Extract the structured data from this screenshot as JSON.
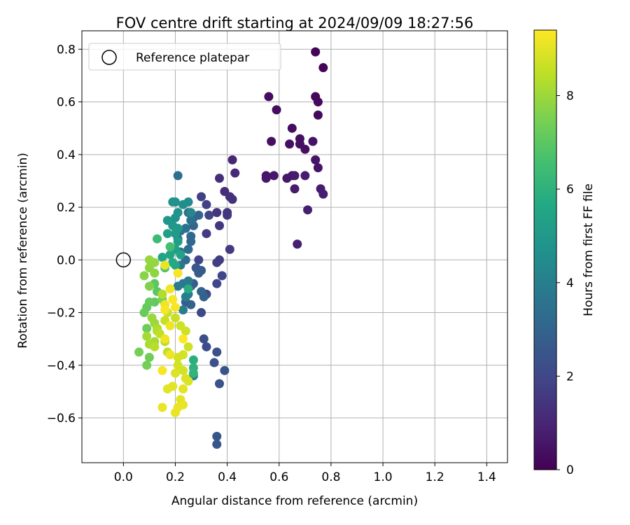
{
  "chart_data": {
    "type": "scatter",
    "title": "FOV centre drift starting at 2024/09/09 18:27:56",
    "xlabel": "Angular distance from reference (arcmin)",
    "ylabel": "Rotation from reference (arcmin)",
    "xlim": [
      -0.16,
      1.48
    ],
    "ylim": [
      -0.77,
      0.87
    ],
    "xticks": [
      0.0,
      0.2,
      0.4,
      0.6,
      0.8,
      1.0,
      1.2,
      1.4
    ],
    "xtick_labels": [
      "0.0",
      "0.2",
      "0.4",
      "0.6",
      "0.8",
      "1.0",
      "1.2",
      "1.4"
    ],
    "yticks": [
      -0.6,
      -0.4,
      -0.2,
      0.0,
      0.2,
      0.4,
      0.6,
      0.8
    ],
    "ytick_labels": [
      "−0.6",
      "−0.4",
      "−0.2",
      "0.0",
      "0.2",
      "0.4",
      "0.6",
      "0.8"
    ],
    "grid": true,
    "legend": {
      "position": "top-left",
      "entries": [
        "Reference platepar"
      ]
    },
    "reference_point": {
      "x": 0.0,
      "y": 0.0,
      "label": "Reference platepar"
    },
    "colorbar": {
      "label": "Hours from first FF file",
      "colormap": "viridis",
      "range": [
        0,
        9.4
      ],
      "ticks": [
        0,
        2,
        4,
        6,
        8
      ],
      "tick_labels": [
        "0",
        "2",
        "4",
        "6",
        "8"
      ]
    },
    "points": [
      [
        0.74,
        0.79,
        0.1
      ],
      [
        0.77,
        0.73,
        0.1
      ],
      [
        0.74,
        0.62,
        0.2
      ],
      [
        0.75,
        0.6,
        0.2
      ],
      [
        0.75,
        0.55,
        0.2
      ],
      [
        0.56,
        0.62,
        0.3
      ],
      [
        0.59,
        0.57,
        0.3
      ],
      [
        0.65,
        0.5,
        0.3
      ],
      [
        0.57,
        0.45,
        0.4
      ],
      [
        0.68,
        0.46,
        0.4
      ],
      [
        0.68,
        0.44,
        0.4
      ],
      [
        0.64,
        0.44,
        0.4
      ],
      [
        0.7,
        0.42,
        0.4
      ],
      [
        0.73,
        0.45,
        0.5
      ],
      [
        0.74,
        0.38,
        0.5
      ],
      [
        0.75,
        0.35,
        0.5
      ],
      [
        0.55,
        0.32,
        0.5
      ],
      [
        0.55,
        0.31,
        0.6
      ],
      [
        0.58,
        0.32,
        0.6
      ],
      [
        0.63,
        0.31,
        0.6
      ],
      [
        0.65,
        0.32,
        0.6
      ],
      [
        0.66,
        0.32,
        0.7
      ],
      [
        0.7,
        0.32,
        0.7
      ],
      [
        0.66,
        0.27,
        0.7
      ],
      [
        0.76,
        0.27,
        0.7
      ],
      [
        0.77,
        0.25,
        0.8
      ],
      [
        0.71,
        0.19,
        0.8
      ],
      [
        0.67,
        0.06,
        0.8
      ],
      [
        0.42,
        0.38,
        1.0
      ],
      [
        0.43,
        0.33,
        1.1
      ],
      [
        0.37,
        0.31,
        1.2
      ],
      [
        0.39,
        0.26,
        1.2
      ],
      [
        0.41,
        0.24,
        1.3
      ],
      [
        0.42,
        0.23,
        1.3
      ],
      [
        0.36,
        0.18,
        1.4
      ],
      [
        0.4,
        0.18,
        1.4
      ],
      [
        0.4,
        0.17,
        1.5
      ],
      [
        0.37,
        0.13,
        1.5
      ],
      [
        0.32,
        0.1,
        1.6
      ],
      [
        0.41,
        0.04,
        1.6
      ],
      [
        0.37,
        0.0,
        1.7
      ],
      [
        0.36,
        -0.01,
        1.7
      ],
      [
        0.32,
        0.21,
        1.8
      ],
      [
        0.3,
        0.24,
        1.8
      ],
      [
        0.33,
        0.17,
        1.9
      ],
      [
        0.29,
        0.0,
        1.9
      ],
      [
        0.38,
        -0.06,
        2.0
      ],
      [
        0.36,
        -0.09,
        2.0
      ],
      [
        0.32,
        -0.13,
        2.1
      ],
      [
        0.3,
        -0.2,
        2.1
      ],
      [
        0.31,
        -0.3,
        2.2
      ],
      [
        0.32,
        -0.33,
        2.2
      ],
      [
        0.36,
        -0.35,
        2.3
      ],
      [
        0.35,
        -0.39,
        2.3
      ],
      [
        0.39,
        -0.42,
        2.4
      ],
      [
        0.37,
        -0.47,
        2.4
      ],
      [
        0.36,
        -0.67,
        2.5
      ],
      [
        0.36,
        -0.7,
        2.5
      ],
      [
        0.28,
        -0.03,
        2.6
      ],
      [
        0.3,
        -0.04,
        2.6
      ],
      [
        0.29,
        -0.05,
        2.7
      ],
      [
        0.27,
        -0.09,
        2.7
      ],
      [
        0.26,
        -0.1,
        2.8
      ],
      [
        0.24,
        -0.16,
        2.8
      ],
      [
        0.26,
        -0.17,
        2.9
      ],
      [
        0.31,
        -0.14,
        2.9
      ],
      [
        0.3,
        -0.12,
        3.0
      ],
      [
        0.29,
        0.17,
        3.0
      ],
      [
        0.27,
        0.16,
        3.1
      ],
      [
        0.27,
        0.13,
        3.1
      ],
      [
        0.26,
        0.09,
        3.2
      ],
      [
        0.26,
        0.07,
        3.2
      ],
      [
        0.25,
        0.04,
        3.3
      ],
      [
        0.24,
        0.0,
        3.3
      ],
      [
        0.21,
        0.32,
        3.4
      ],
      [
        0.25,
        0.18,
        3.4
      ],
      [
        0.26,
        0.15,
        3.5
      ],
      [
        0.24,
        0.12,
        3.5
      ],
      [
        0.22,
        0.11,
        3.6
      ],
      [
        0.21,
        0.08,
        3.6
      ],
      [
        0.22,
        0.03,
        3.7
      ],
      [
        0.22,
        -0.02,
        3.7
      ],
      [
        0.25,
        -0.08,
        3.8
      ],
      [
        0.23,
        -0.09,
        3.8
      ],
      [
        0.21,
        -0.1,
        3.9
      ],
      [
        0.25,
        -0.13,
        3.9
      ],
      [
        0.24,
        -0.14,
        4.0
      ],
      [
        0.23,
        -0.19,
        4.0
      ],
      [
        0.27,
        -0.44,
        4.1
      ],
      [
        0.26,
        0.18,
        4.3
      ],
      [
        0.25,
        0.22,
        4.5
      ],
      [
        0.23,
        0.21,
        4.6
      ],
      [
        0.2,
        0.22,
        4.7
      ],
      [
        0.19,
        0.22,
        4.7
      ],
      [
        0.21,
        0.18,
        4.8
      ],
      [
        0.2,
        0.16,
        4.8
      ],
      [
        0.17,
        0.15,
        4.9
      ],
      [
        0.19,
        0.13,
        5.0
      ],
      [
        0.21,
        0.12,
        5.0
      ],
      [
        0.2,
        0.1,
        5.1
      ],
      [
        0.17,
        0.1,
        5.2
      ],
      [
        0.21,
        0.07,
        5.2
      ],
      [
        0.2,
        0.04,
        5.3
      ],
      [
        0.22,
        0.02,
        5.4
      ],
      [
        0.18,
        0.02,
        5.5
      ],
      [
        0.15,
        0.01,
        5.5
      ],
      [
        0.2,
        -0.02,
        5.6
      ],
      [
        0.19,
        -0.01,
        5.7
      ],
      [
        0.25,
        -0.11,
        5.8
      ],
      [
        0.27,
        -0.38,
        5.9
      ],
      [
        0.27,
        -0.41,
        6.0
      ],
      [
        0.27,
        -0.43,
        6.1
      ],
      [
        0.13,
        0.08,
        6.4
      ],
      [
        0.18,
        0.05,
        6.6
      ],
      [
        0.16,
        -0.03,
        6.8
      ],
      [
        0.12,
        -0.09,
        7.0
      ],
      [
        0.13,
        -0.12,
        7.0
      ],
      [
        0.09,
        -0.18,
        7.1
      ],
      [
        0.12,
        -0.16,
        7.1
      ],
      [
        0.08,
        -0.2,
        7.2
      ],
      [
        0.1,
        -0.16,
        7.2
      ],
      [
        0.09,
        -0.26,
        7.3
      ],
      [
        0.1,
        -0.37,
        7.3
      ],
      [
        0.09,
        -0.4,
        7.4
      ],
      [
        0.06,
        -0.35,
        7.4
      ],
      [
        0.15,
        -0.15,
        7.5
      ],
      [
        0.1,
        -0.1,
        7.6
      ],
      [
        0.08,
        -0.06,
        7.7
      ],
      [
        0.12,
        -0.05,
        7.8
      ],
      [
        0.1,
        -0.03,
        7.8
      ],
      [
        0.1,
        0.0,
        7.9
      ],
      [
        0.12,
        -0.01,
        7.9
      ],
      [
        0.11,
        -0.22,
        8.0
      ],
      [
        0.12,
        -0.24,
        8.0
      ],
      [
        0.09,
        -0.29,
        8.1
      ],
      [
        0.12,
        -0.31,
        8.1
      ],
      [
        0.1,
        -0.32,
        8.2
      ],
      [
        0.13,
        -0.26,
        8.2
      ],
      [
        0.15,
        -0.13,
        8.3
      ],
      [
        0.13,
        -0.27,
        8.3
      ],
      [
        0.12,
        -0.33,
        8.4
      ],
      [
        0.16,
        -0.31,
        8.4
      ],
      [
        0.17,
        -0.35,
        8.5
      ],
      [
        0.14,
        -0.28,
        8.5
      ],
      [
        0.17,
        -0.2,
        8.6
      ],
      [
        0.16,
        -0.23,
        8.6
      ],
      [
        0.2,
        -0.22,
        8.6
      ],
      [
        0.22,
        -0.25,
        8.7
      ],
      [
        0.24,
        -0.27,
        8.7
      ],
      [
        0.25,
        -0.33,
        8.7
      ],
      [
        0.23,
        -0.36,
        8.8
      ],
      [
        0.21,
        -0.37,
        8.8
      ],
      [
        0.21,
        -0.4,
        8.8
      ],
      [
        0.23,
        -0.42,
        8.8
      ],
      [
        0.24,
        -0.45,
        8.9
      ],
      [
        0.25,
        -0.46,
        8.9
      ],
      [
        0.2,
        -0.43,
        8.9
      ],
      [
        0.19,
        -0.48,
        9.0
      ],
      [
        0.17,
        -0.49,
        9.0
      ],
      [
        0.23,
        -0.49,
        9.0
      ],
      [
        0.22,
        -0.53,
        9.0
      ],
      [
        0.23,
        -0.55,
        9.1
      ],
      [
        0.15,
        -0.56,
        9.1
      ],
      [
        0.21,
        -0.56,
        9.1
      ],
      [
        0.2,
        -0.58,
        9.1
      ],
      [
        0.16,
        -0.02,
        9.1
      ],
      [
        0.18,
        -0.11,
        9.2
      ],
      [
        0.16,
        -0.17,
        9.2
      ],
      [
        0.18,
        -0.25,
        9.2
      ],
      [
        0.16,
        -0.3,
        9.2
      ],
      [
        0.18,
        -0.36,
        9.2
      ],
      [
        0.21,
        -0.05,
        9.3
      ],
      [
        0.19,
        -0.15,
        9.3
      ],
      [
        0.2,
        -0.18,
        9.3
      ],
      [
        0.16,
        -0.19,
        9.3
      ],
      [
        0.15,
        -0.42,
        9.3
      ],
      [
        0.23,
        -0.3,
        9.4
      ]
    ]
  }
}
